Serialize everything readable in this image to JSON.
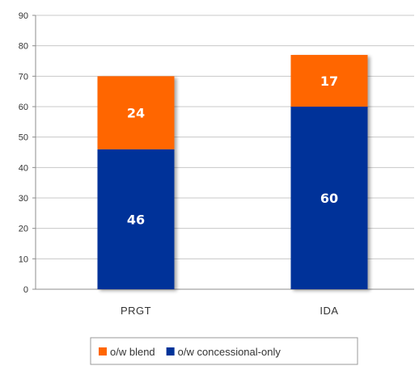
{
  "chart_data": {
    "type": "bar",
    "stacked": true,
    "categories": [
      "PRGT",
      "IDA"
    ],
    "series": [
      {
        "name": "o/w concessional-only",
        "values": [
          46,
          60
        ],
        "color": "#003399"
      },
      {
        "name": "o/w blend",
        "values": [
          24,
          17
        ],
        "color": "#ff6600"
      }
    ],
    "title": "",
    "xlabel": "",
    "ylabel": "",
    "ylim": [
      0,
      90
    ],
    "yticks": [
      0,
      10,
      20,
      30,
      40,
      50,
      60,
      70,
      80,
      90
    ],
    "grid": true,
    "legend_position": "bottom",
    "legend_order": [
      "o/w blend",
      "o/w concessional-only"
    ]
  }
}
